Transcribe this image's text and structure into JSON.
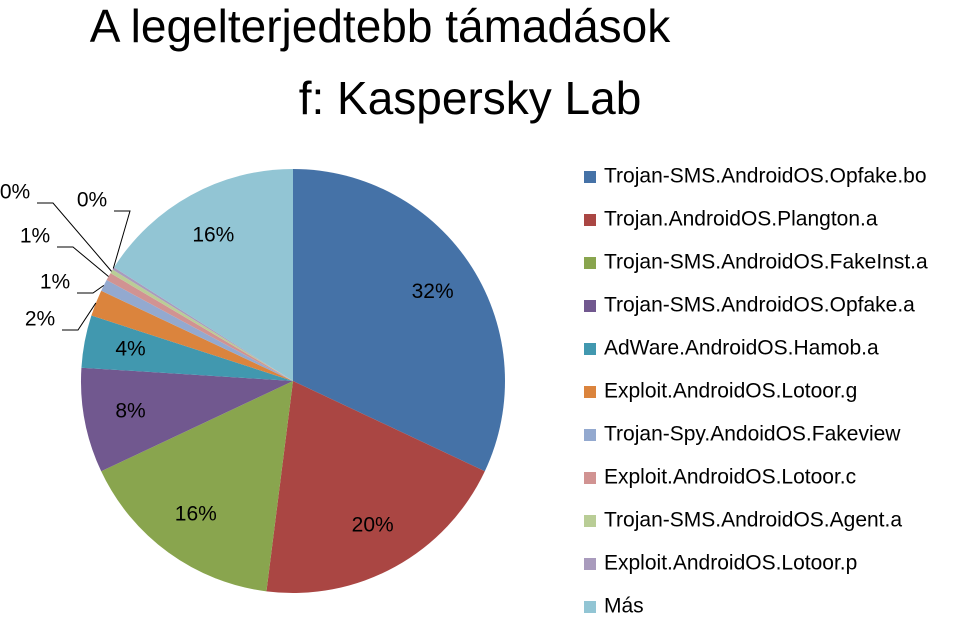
{
  "chart_data": {
    "type": "pie",
    "title": "A legelterjedtebb támadások",
    "subtitle": "f: Kaspersky Lab",
    "categories": [
      "Trojan-SMS.AndroidOS.Opfake.bo",
      "Trojan.AndroidOS.Plangton.a",
      "Trojan-SMS.AndroidOS.FakeInst.a",
      "Trojan-SMS.AndroidOS.Opfake.a",
      "AdWare.AndroidOS.Hamob.a",
      "Exploit.AndroidOS.Lotoor.g",
      "Trojan-Spy.AndoidOS.Fakeview",
      "Exploit.AndroidOS.Lotoor.c",
      "Trojan-SMS.AndroidOS.Agent.a",
      "Exploit.AndroidOS.Lotoor.p",
      "Más"
    ],
    "values": [
      32,
      20,
      16,
      8,
      4,
      2,
      0.9,
      0.6,
      0.3,
      0.2,
      16
    ],
    "value_labels": [
      "32%",
      "20%",
      "16%",
      "8%",
      "4%",
      "2%",
      "1%",
      "1%",
      "0%",
      "0%",
      "16%"
    ],
    "colors": [
      "#4572a7",
      "#aa4643",
      "#89a54e",
      "#71588f",
      "#4198af",
      "#db843d",
      "#93a9cf",
      "#d19392",
      "#b9cd96",
      "#a99bbd",
      "#92c5d4"
    ],
    "legend": "right"
  }
}
